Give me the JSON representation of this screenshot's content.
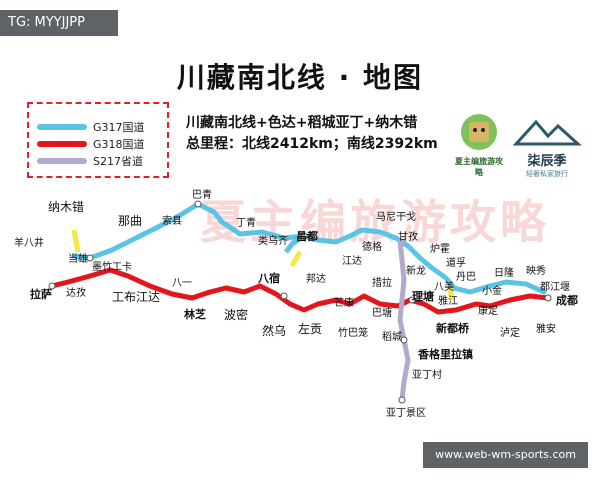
{
  "tag": "TG: MYYJJPP",
  "title": "川藏南北线 · 地图",
  "subtitle_line1": "川藏南北线+色达+稻城亚丁+纳木错",
  "subtitle_line2": "总里程：北线2412km；南线2392km",
  "legend": [
    {
      "label": "G317国道",
      "color": "#5bc3e6"
    },
    {
      "label": "G318国道",
      "color": "#e3161d"
    },
    {
      "label": "S217省道",
      "color": "#b2a9cc"
    }
  ],
  "logo1_text": "夏主编旅游攻略",
  "logo2_text": "柒辰季",
  "logo2_sub": "轻奢私家旅行",
  "watermark": "夏主编旅游攻略",
  "badge": "www.web-wm-sports.com",
  "route_colors": {
    "north": "#5bc3e6",
    "south": "#e3161d",
    "s217": "#b2a9cc",
    "branch": "#f4e842"
  },
  "places": [
    {
      "name": "纳木错",
      "style": "l"
    },
    {
      "name": "羊八井",
      "style": ""
    },
    {
      "name": "拉萨",
      "style": "b"
    },
    {
      "name": "当雄",
      "style": ""
    },
    {
      "name": "达孜",
      "style": ""
    },
    {
      "name": "那曲",
      "style": "l"
    },
    {
      "name": "墨竹工卡",
      "style": ""
    },
    {
      "name": "工布江达",
      "style": "l"
    },
    {
      "name": "巴青",
      "style": ""
    },
    {
      "name": "索县",
      "style": ""
    },
    {
      "name": "八一",
      "style": ""
    },
    {
      "name": "林芝",
      "style": "b"
    },
    {
      "name": "波密",
      "style": "l"
    },
    {
      "name": "丁青",
      "style": ""
    },
    {
      "name": "类乌齐",
      "style": ""
    },
    {
      "name": "昌都",
      "style": "b"
    },
    {
      "name": "八宿",
      "style": "b"
    },
    {
      "name": "邦达",
      "style": ""
    },
    {
      "name": "然乌",
      "style": "l"
    },
    {
      "name": "左贡",
      "style": "l"
    },
    {
      "name": "芒康",
      "style": ""
    },
    {
      "name": "竹巴笼",
      "style": ""
    },
    {
      "name": "江达",
      "style": ""
    },
    {
      "name": "德格",
      "style": ""
    },
    {
      "name": "马尼干戈",
      "style": ""
    },
    {
      "name": "甘孜",
      "style": ""
    },
    {
      "name": "措拉",
      "style": ""
    },
    {
      "name": "巴塘",
      "style": ""
    },
    {
      "name": "新龙",
      "style": ""
    },
    {
      "name": "理塘",
      "style": "b"
    },
    {
      "name": "稻城",
      "style": ""
    },
    {
      "name": "炉霍",
      "style": ""
    },
    {
      "name": "道孚",
      "style": ""
    },
    {
      "name": "八美",
      "style": ""
    },
    {
      "name": "雅江",
      "style": ""
    },
    {
      "name": "丹巴",
      "style": ""
    },
    {
      "name": "小金",
      "style": ""
    },
    {
      "name": "日隆",
      "style": ""
    },
    {
      "name": "映秀",
      "style": ""
    },
    {
      "name": "都江堰",
      "style": ""
    },
    {
      "name": "成都",
      "style": "b"
    },
    {
      "name": "康定",
      "style": ""
    },
    {
      "name": "泸定",
      "style": ""
    },
    {
      "name": "雅安",
      "style": ""
    },
    {
      "name": "新都桥",
      "style": "b"
    },
    {
      "name": "香格里拉镇",
      "style": "b"
    },
    {
      "name": "亚丁村",
      "style": ""
    },
    {
      "name": "亚丁景区",
      "style": ""
    }
  ]
}
